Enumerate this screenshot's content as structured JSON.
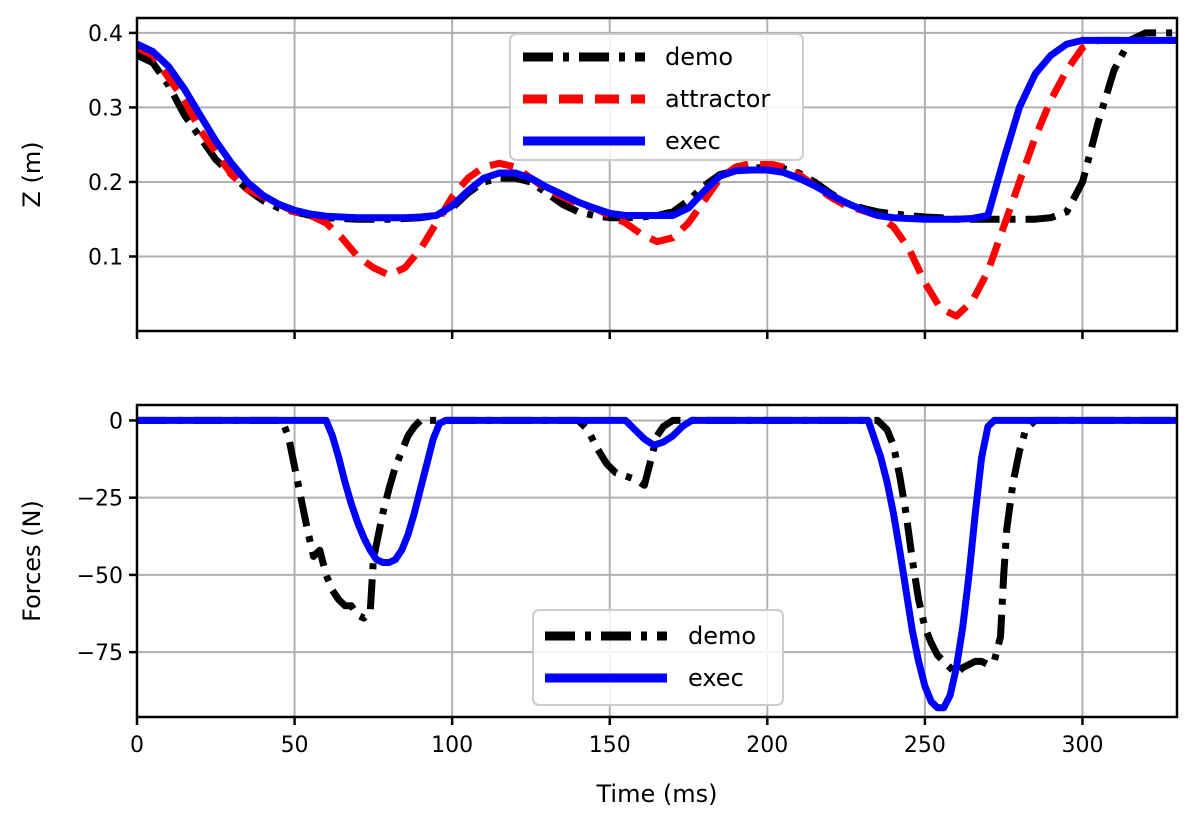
{
  "chart_data": [
    {
      "type": "line",
      "title": "",
      "xlabel": "",
      "ylabel": "Z (m)",
      "xlim": [
        0,
        330
      ],
      "ylim": [
        0.0,
        0.42
      ],
      "xticks": [
        0,
        50,
        100,
        150,
        200,
        250,
        300
      ],
      "xtick_labels_shown": false,
      "yticks": [
        0.1,
        0.2,
        0.3,
        0.4
      ],
      "ytick_labels": [
        "0.1",
        "0.2",
        "0.3",
        "0.4"
      ],
      "grid": true,
      "legend": {
        "placement": "upper-center",
        "entries": [
          "demo",
          "attractor",
          "exec"
        ]
      },
      "series": [
        {
          "name": "demo",
          "color": "#000000",
          "style": "dashdot",
          "x": [
            0,
            5,
            10,
            15,
            20,
            25,
            30,
            35,
            40,
            45,
            50,
            55,
            60,
            65,
            70,
            75,
            80,
            85,
            90,
            95,
            100,
            105,
            110,
            115,
            120,
            125,
            130,
            135,
            140,
            145,
            150,
            155,
            160,
            165,
            170,
            175,
            180,
            185,
            190,
            195,
            200,
            205,
            210,
            215,
            220,
            225,
            230,
            235,
            240,
            245,
            250,
            255,
            260,
            265,
            270,
            275,
            280,
            285,
            290,
            295,
            300,
            305,
            310,
            315,
            320,
            325,
            330
          ],
          "y": [
            0.37,
            0.36,
            0.33,
            0.29,
            0.26,
            0.23,
            0.21,
            0.19,
            0.175,
            0.165,
            0.16,
            0.155,
            0.152,
            0.151,
            0.15,
            0.15,
            0.15,
            0.151,
            0.152,
            0.155,
            0.165,
            0.185,
            0.2,
            0.205,
            0.205,
            0.2,
            0.185,
            0.17,
            0.16,
            0.155,
            0.152,
            0.152,
            0.153,
            0.155,
            0.16,
            0.175,
            0.195,
            0.21,
            0.215,
            0.218,
            0.22,
            0.218,
            0.212,
            0.2,
            0.185,
            0.172,
            0.165,
            0.16,
            0.157,
            0.155,
            0.153,
            0.152,
            0.15,
            0.15,
            0.15,
            0.15,
            0.15,
            0.15,
            0.152,
            0.16,
            0.2,
            0.28,
            0.35,
            0.39,
            0.4,
            0.4,
            0.4
          ]
        },
        {
          "name": "attractor",
          "color": "#ff0000",
          "style": "dashed",
          "x": [
            0,
            5,
            10,
            15,
            20,
            25,
            30,
            35,
            40,
            45,
            50,
            55,
            60,
            65,
            70,
            75,
            80,
            85,
            90,
            95,
            100,
            105,
            110,
            115,
            120,
            125,
            130,
            135,
            140,
            145,
            150,
            155,
            160,
            165,
            170,
            175,
            180,
            185,
            190,
            195,
            200,
            205,
            210,
            215,
            220,
            225,
            230,
            235,
            240,
            245,
            250,
            255,
            260,
            265,
            270,
            275,
            280,
            285,
            290,
            295,
            300,
            305,
            310,
            315,
            320,
            325,
            330
          ],
          "y": [
            0.38,
            0.37,
            0.34,
            0.31,
            0.27,
            0.24,
            0.21,
            0.19,
            0.18,
            0.17,
            0.16,
            0.155,
            0.145,
            0.125,
            0.1,
            0.085,
            0.075,
            0.085,
            0.11,
            0.145,
            0.18,
            0.205,
            0.22,
            0.225,
            0.22,
            0.205,
            0.19,
            0.18,
            0.17,
            0.165,
            0.155,
            0.145,
            0.13,
            0.12,
            0.125,
            0.145,
            0.175,
            0.205,
            0.22,
            0.225,
            0.225,
            0.22,
            0.21,
            0.195,
            0.18,
            0.168,
            0.162,
            0.155,
            0.14,
            0.11,
            0.065,
            0.03,
            0.02,
            0.04,
            0.08,
            0.14,
            0.2,
            0.26,
            0.31,
            0.35,
            0.38,
            0.39,
            0.39,
            0.39,
            0.39,
            0.39,
            0.39
          ]
        },
        {
          "name": "exec",
          "color": "#0000ff",
          "style": "solid",
          "x": [
            0,
            5,
            10,
            15,
            20,
            25,
            30,
            35,
            40,
            45,
            50,
            55,
            60,
            65,
            70,
            75,
            80,
            85,
            90,
            95,
            100,
            105,
            110,
            115,
            120,
            125,
            130,
            135,
            140,
            145,
            150,
            155,
            160,
            165,
            170,
            175,
            180,
            185,
            190,
            195,
            200,
            205,
            210,
            215,
            220,
            225,
            230,
            235,
            240,
            245,
            250,
            255,
            260,
            265,
            270,
            275,
            280,
            285,
            290,
            295,
            300,
            305,
            310,
            315,
            320,
            325,
            330
          ],
          "y": [
            0.385,
            0.375,
            0.355,
            0.325,
            0.29,
            0.255,
            0.225,
            0.2,
            0.182,
            0.17,
            0.162,
            0.157,
            0.154,
            0.153,
            0.152,
            0.152,
            0.152,
            0.152,
            0.153,
            0.155,
            0.168,
            0.188,
            0.205,
            0.212,
            0.212,
            0.205,
            0.193,
            0.183,
            0.173,
            0.165,
            0.158,
            0.155,
            0.155,
            0.155,
            0.155,
            0.165,
            0.188,
            0.208,
            0.215,
            0.216,
            0.216,
            0.213,
            0.205,
            0.195,
            0.183,
            0.172,
            0.163,
            0.155,
            0.152,
            0.151,
            0.15,
            0.15,
            0.15,
            0.151,
            0.155,
            0.23,
            0.3,
            0.345,
            0.37,
            0.385,
            0.39,
            0.39,
            0.39,
            0.39,
            0.39,
            0.39,
            0.39
          ]
        }
      ]
    },
    {
      "type": "line",
      "title": "",
      "xlabel": "Time (ms)",
      "ylabel": "Forces (N)",
      "xlim": [
        0,
        330
      ],
      "ylim": [
        -96,
        5
      ],
      "xticks": [
        0,
        50,
        100,
        150,
        200,
        250,
        300
      ],
      "xtick_labels": [
        "0",
        "50",
        "100",
        "150",
        "200",
        "250",
        "300"
      ],
      "yticks": [
        0,
        -25,
        -50,
        -75
      ],
      "ytick_labels": [
        "0",
        "−25",
        "−50",
        "−75"
      ],
      "grid": true,
      "legend": {
        "placement": "lower-center",
        "entries": [
          "demo",
          "exec"
        ]
      },
      "series": [
        {
          "name": "demo",
          "color": "#000000",
          "style": "dashdot",
          "x": [
            0,
            46,
            48,
            50,
            52,
            54,
            56,
            58,
            60,
            62,
            64,
            66,
            68,
            70,
            72,
            74,
            75,
            76,
            78,
            80,
            82,
            84,
            86,
            88,
            90,
            92,
            95,
            140,
            143,
            146,
            149,
            152,
            155,
            158,
            161,
            163,
            165,
            167,
            170,
            173,
            176,
            235,
            238,
            240,
            242,
            244,
            246,
            248,
            250,
            252,
            254,
            256,
            258,
            260,
            262,
            264,
            266,
            268,
            270,
            272,
            274,
            275,
            276,
            278,
            280,
            282,
            285,
            330
          ],
          "y": [
            0,
            0,
            -5,
            -15,
            -25,
            -35,
            -44,
            -42,
            -50,
            -55,
            -58,
            -60,
            -60,
            -63,
            -64,
            -62,
            -45,
            -40,
            -30,
            -22,
            -15,
            -10,
            -5,
            -2,
            0,
            0,
            0,
            0,
            -3,
            -9,
            -14,
            -17,
            -18,
            -19,
            -21,
            -13,
            -5,
            -2,
            0,
            0,
            0,
            0,
            -3,
            -8,
            -18,
            -30,
            -45,
            -58,
            -67,
            -72,
            -76,
            -78,
            -80,
            -82,
            -80,
            -79,
            -78,
            -78,
            -79,
            -78,
            -70,
            -50,
            -35,
            -20,
            -10,
            -3,
            0,
            0
          ]
        },
        {
          "name": "exec",
          "color": "#0000ff",
          "style": "solid",
          "x": [
            0,
            60,
            62,
            64,
            66,
            68,
            70,
            72,
            74,
            76,
            78,
            80,
            82,
            84,
            86,
            88,
            90,
            92,
            94,
            96,
            98,
            155,
            158,
            161,
            164,
            167,
            170,
            173,
            176,
            232,
            234,
            236,
            238,
            240,
            242,
            244,
            246,
            248,
            250,
            252,
            254,
            256,
            258,
            260,
            262,
            264,
            266,
            268,
            270,
            272,
            330
          ],
          "y": [
            0,
            0,
            -5,
            -12,
            -20,
            -27,
            -33,
            -38,
            -42,
            -45,
            -46,
            -46,
            -45,
            -42,
            -37,
            -30,
            -22,
            -14,
            -6,
            -1,
            0,
            0,
            -3,
            -6,
            -8,
            -7,
            -5,
            -2,
            0,
            0,
            -6,
            -12,
            -20,
            -30,
            -42,
            -55,
            -68,
            -78,
            -86,
            -91,
            -93,
            -93,
            -89,
            -80,
            -67,
            -50,
            -30,
            -12,
            -2,
            0,
            0
          ]
        }
      ]
    }
  ]
}
